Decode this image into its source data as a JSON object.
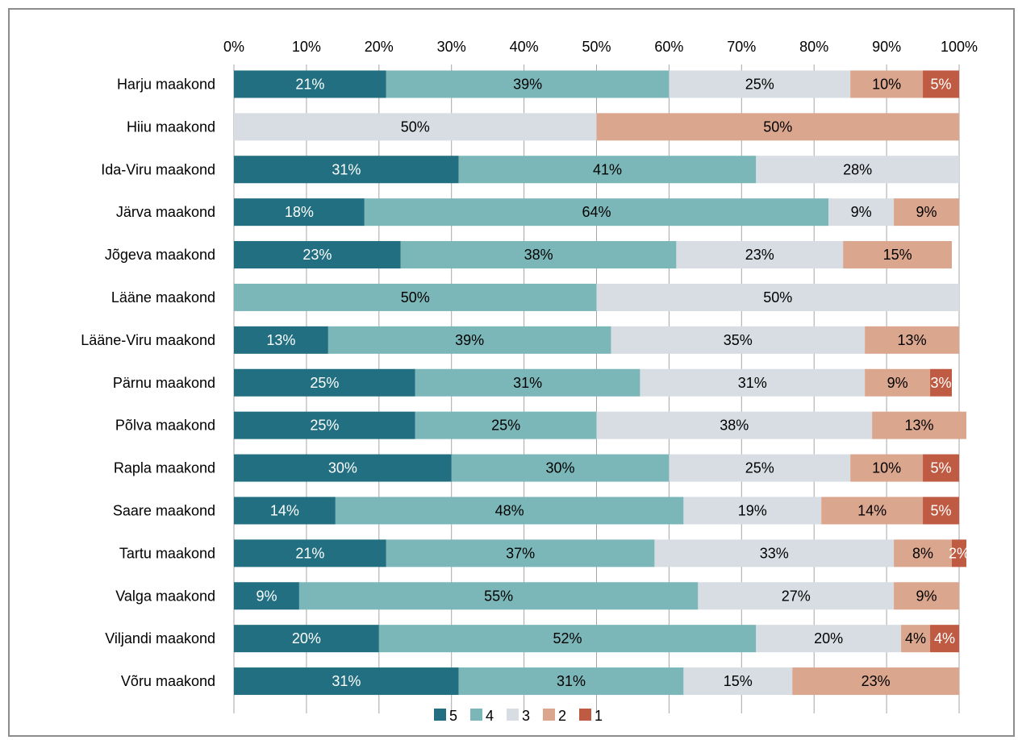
{
  "chart_data": {
    "type": "bar",
    "orientation": "horizontal",
    "stacked": "percent",
    "title": "",
    "xlabel": "",
    "ylabel": "",
    "xlim": [
      0,
      100
    ],
    "x_ticks": [
      "0%",
      "10%",
      "20%",
      "30%",
      "40%",
      "50%",
      "60%",
      "70%",
      "80%",
      "90%",
      "100%"
    ],
    "x_axis_position": "top",
    "grid": "vertical",
    "legend_position": "bottom",
    "categories": [
      "Harju maakond",
      "Hiiu maakond",
      "Ida-Viru maakond",
      "Järva maakond",
      "Jõgeva maakond",
      "Lääne maakond",
      "Lääne-Viru maakond",
      "Pärnu maakond",
      "Põlva maakond",
      "Rapla maakond",
      "Saare maakond",
      "Tartu maakond",
      "Valga maakond",
      "Viljandi maakond",
      "Võru maakond"
    ],
    "series": [
      {
        "name": "5",
        "color": "#216f80",
        "label_color": "#ffffff",
        "values": [
          21,
          0,
          31,
          18,
          23,
          0,
          13,
          25,
          25,
          30,
          14,
          21,
          9,
          20,
          31
        ]
      },
      {
        "name": "4",
        "color": "#7bb7b9",
        "label_color": "#000000",
        "values": [
          39,
          0,
          41,
          64,
          38,
          50,
          39,
          31,
          25,
          30,
          48,
          37,
          55,
          52,
          31
        ]
      },
      {
        "name": "3",
        "color": "#d7dde3",
        "label_color": "#000000",
        "values": [
          25,
          50,
          28,
          9,
          23,
          50,
          35,
          31,
          38,
          25,
          19,
          33,
          27,
          20,
          15
        ]
      },
      {
        "name": "2",
        "color": "#dba68e",
        "label_color": "#000000",
        "values": [
          10,
          50,
          0,
          9,
          15,
          0,
          13,
          9,
          13,
          10,
          14,
          8,
          9,
          4,
          23
        ]
      },
      {
        "name": "1",
        "color": "#c05b43",
        "label_color": "#ffffff",
        "values": [
          5,
          0,
          0,
          0,
          0,
          0,
          0,
          3,
          0,
          5,
          5,
          2,
          0,
          4,
          0
        ]
      }
    ]
  }
}
